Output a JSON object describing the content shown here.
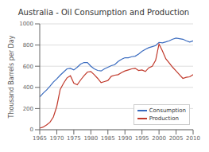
{
  "chart_data": {
    "type": "line",
    "title": "Australia - Oil Consumption and Production",
    "y_label": "Thousand Barrels per Day",
    "x": [
      1965,
      1966,
      1967,
      1968,
      1969,
      1970,
      1971,
      1972,
      1973,
      1974,
      1975,
      1976,
      1977,
      1978,
      1979,
      1980,
      1981,
      1982,
      1983,
      1984,
      1985,
      1986,
      1987,
      1988,
      1989,
      1990,
      1991,
      1992,
      1993,
      1994,
      1995,
      1996,
      1997,
      1998,
      1999,
      2000,
      2001,
      2002,
      2003,
      2004,
      2005,
      2006,
      2007,
      2008,
      2009,
      2010
    ],
    "series": [
      {
        "name": "Consumption",
        "color": "#3a6bbf",
        "values": [
          310,
          345,
          375,
          410,
          450,
          480,
          515,
          545,
          575,
          580,
          565,
          590,
          620,
          635,
          635,
          600,
          575,
          560,
          555,
          575,
          590,
          605,
          615,
          645,
          665,
          680,
          680,
          690,
          695,
          715,
          740,
          760,
          775,
          785,
          795,
          825,
          820,
          830,
          840,
          855,
          865,
          860,
          855,
          840,
          828,
          840
        ]
      },
      {
        "name": "Production",
        "color": "#c0392b",
        "values": [
          15,
          25,
          45,
          70,
          120,
          220,
          380,
          440,
          490,
          510,
          440,
          425,
          470,
          510,
          545,
          550,
          520,
          485,
          445,
          455,
          465,
          505,
          515,
          520,
          540,
          555,
          565,
          575,
          580,
          560,
          565,
          550,
          585,
          600,
          655,
          810,
          745,
          670,
          630,
          590,
          555,
          520,
          485,
          495,
          500,
          520
        ]
      }
    ],
    "xlim": [
      1965,
      2010
    ],
    "ylim": [
      0,
      1000
    ],
    "xticks": [
      1965,
      1970,
      1975,
      1980,
      1985,
      1990,
      1995,
      2000,
      2005,
      2010
    ],
    "yticks": [
      0,
      200,
      400,
      600,
      800,
      1000
    ],
    "grid": true,
    "legend": "lower right"
  }
}
